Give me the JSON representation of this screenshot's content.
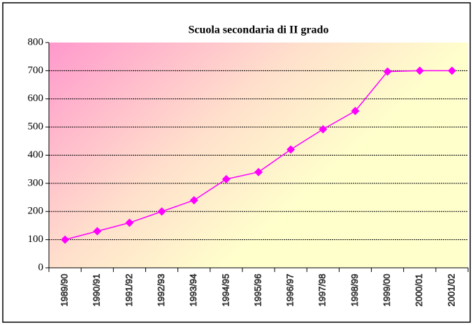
{
  "chart_data": {
    "type": "line",
    "title": "Scuola secondaria di II grado",
    "categories": [
      "1989/90",
      "1990/91",
      "1991/92",
      "1992/93",
      "1993/94",
      "1994/95",
      "1995/96",
      "1996/97",
      "1997/98",
      "1998/99",
      "1999/00",
      "2000/01",
      "2001/02"
    ],
    "series": [
      {
        "name": "Scuola secondaria di II grado",
        "color": "#ff00ff",
        "values": [
          100,
          130,
          160,
          200,
          240,
          315,
          340,
          420,
          492,
          557,
          697,
          700,
          700
        ]
      }
    ],
    "ylim": [
      0,
      800
    ],
    "yticks": [
      0,
      100,
      200,
      300,
      400,
      500,
      600,
      700,
      800
    ],
    "grid": true
  }
}
